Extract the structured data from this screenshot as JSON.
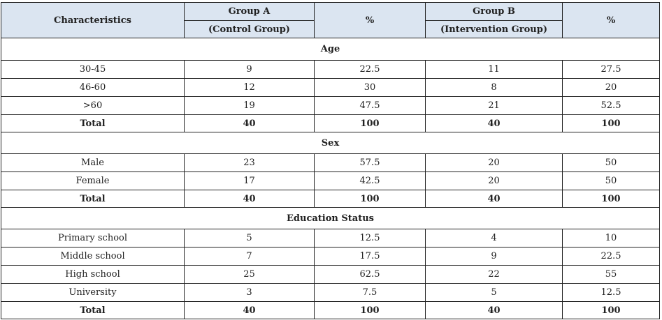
{
  "header": {
    "characteristics": "Characteristics",
    "group_a": "Group A",
    "group_a_sub": "(Control Group)",
    "pct_a": "%",
    "group_b": "Group B",
    "group_b_sub": "(Intervention Group)",
    "pct_b": "%"
  },
  "sections": [
    {
      "title": "Age",
      "rows": [
        {
          "label": "30-45",
          "a": "9",
          "a_pct": "22.5",
          "b": "11",
          "b_pct": "27.5"
        },
        {
          "label": "46-60",
          "a": "12",
          "a_pct": "30",
          "b": "8",
          "b_pct": "20"
        },
        {
          "label": ">60",
          "a": "19",
          "a_pct": "47.5",
          "b": "21",
          "b_pct": "52.5"
        }
      ],
      "total": {
        "label": "Total",
        "a": "40",
        "a_pct": "100",
        "b": "40",
        "b_pct": "100"
      }
    },
    {
      "title": "Sex",
      "rows": [
        {
          "label": "Male",
          "a": "23",
          "a_pct": "57.5",
          "b": "20",
          "b_pct": "50"
        },
        {
          "label": "Female",
          "a": "17",
          "a_pct": "42.5",
          "b": "20",
          "b_pct": "50"
        }
      ],
      "total": {
        "label": "Total",
        "a": "40",
        "a_pct": "100",
        "b": "40",
        "b_pct": "100"
      }
    },
    {
      "title": "Education Status",
      "rows": [
        {
          "label": "Primary school",
          "a": "5",
          "a_pct": "12.5",
          "b": "4",
          "b_pct": "10"
        },
        {
          "label": "Middle school",
          "a": "7",
          "a_pct": "17.5",
          "b": "9",
          "b_pct": "22.5"
        },
        {
          "label": "High school",
          "a": "25",
          "a_pct": "62.5",
          "b": "22",
          "b_pct": "55"
        },
        {
          "label": "University",
          "a": "3",
          "a_pct": "7.5",
          "b": "5",
          "b_pct": "12.5"
        }
      ],
      "total": {
        "label": "Total",
        "a": "40",
        "a_pct": "100",
        "b": "40",
        "b_pct": "100"
      }
    }
  ],
  "colors": {
    "header_bg": "#dbe5f1",
    "border": "#222222",
    "text": "#222222"
  }
}
